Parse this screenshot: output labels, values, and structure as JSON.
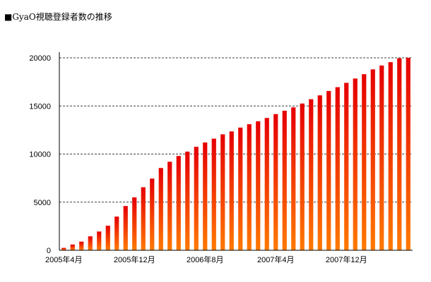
{
  "chart_data": {
    "type": "bar",
    "title": "■GyaO視聴登録者数の推移",
    "xlabel": "",
    "ylabel": "",
    "ylim": [
      0,
      20000
    ],
    "yticks": [
      "0",
      "5000",
      "10000",
      "15000",
      "20000"
    ],
    "xtick_labels": [
      {
        "label": "2005年4月",
        "index": 0
      },
      {
        "label": "2005年12月",
        "index": 8
      },
      {
        "label": "2006年8月",
        "index": 16
      },
      {
        "label": "2007年4月",
        "index": 24
      },
      {
        "label": "2007年12月",
        "index": 32
      }
    ],
    "categories": [
      "2005-04",
      "2005-05",
      "2005-06",
      "2005-07",
      "2005-08",
      "2005-09",
      "2005-10",
      "2005-11",
      "2005-12",
      "2006-01",
      "2006-02",
      "2006-03",
      "2006-04",
      "2006-05",
      "2006-06",
      "2006-07",
      "2006-08",
      "2006-09",
      "2006-10",
      "2006-11",
      "2006-12",
      "2007-01",
      "2007-02",
      "2007-03",
      "2007-04",
      "2007-05",
      "2007-06",
      "2007-07",
      "2007-08",
      "2007-09",
      "2007-10",
      "2007-11",
      "2007-12",
      "2008-01",
      "2008-02",
      "2008-03",
      "2008-04",
      "2008-05",
      "2008-06",
      "2008-07"
    ],
    "values": [
      250,
      600,
      900,
      1450,
      1950,
      2550,
      3500,
      4600,
      5500,
      6550,
      7450,
      8550,
      9200,
      9800,
      10250,
      10750,
      11200,
      11600,
      12050,
      12350,
      12750,
      13100,
      13400,
      13750,
      14150,
      14500,
      14850,
      15250,
      15700,
      16100,
      16550,
      16950,
      17400,
      17850,
      18300,
      18800,
      19200,
      19550,
      19950,
      20000
    ],
    "grid": true,
    "gridStyle": "dashed",
    "barGradient": [
      "#e60000",
      "#ff7a00"
    ],
    "axisColor": "#000000"
  }
}
